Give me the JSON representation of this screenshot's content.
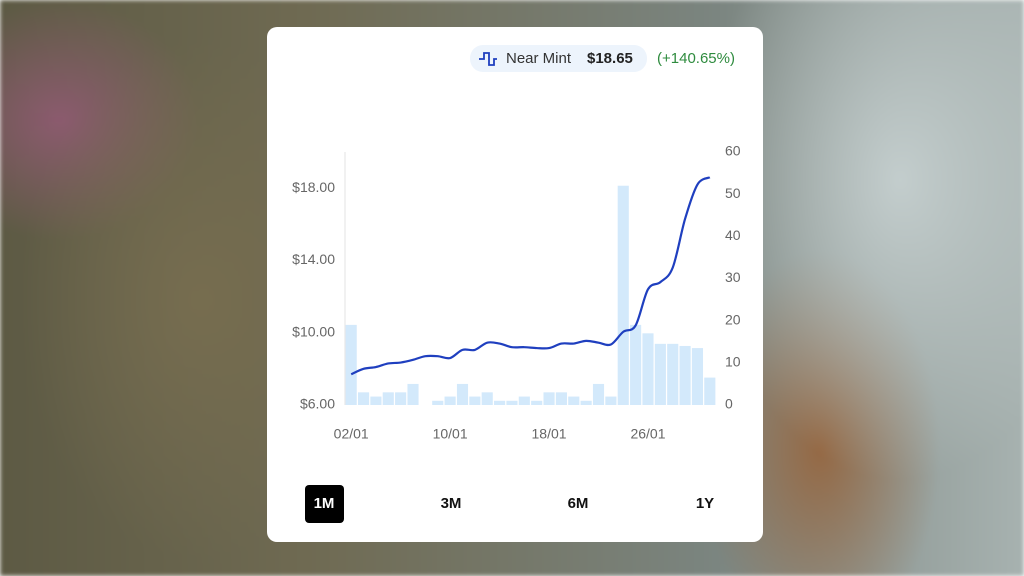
{
  "header": {
    "condition": "Near Mint",
    "price": "$18.65",
    "change": "(+140.65%)"
  },
  "ranges": [
    "1M",
    "3M",
    "6M",
    "1Y"
  ],
  "selected_range": 0,
  "chart_data": {
    "type": "combo",
    "categories": [
      "02/01",
      null,
      null,
      null,
      null,
      null,
      null,
      null,
      "10/01",
      null,
      null,
      null,
      null,
      null,
      null,
      null,
      "18/01",
      null,
      null,
      null,
      null,
      null,
      null,
      null,
      "26/01",
      null,
      null,
      null,
      null,
      null
    ],
    "series": [
      {
        "type": "bar",
        "axis": "y2",
        "color": "#d3e9fb",
        "values": [
          19,
          3,
          2,
          3,
          3,
          5,
          0,
          1,
          2,
          5,
          2,
          3,
          1,
          1,
          2,
          1,
          3,
          3,
          2,
          1,
          5,
          2,
          52,
          19,
          17,
          14.5,
          14.5,
          14,
          13.5,
          6.5
        ]
      },
      {
        "type": "line",
        "axis": "y",
        "color": "#1f3fbf",
        "values": [
          7.7,
          8.0,
          8.1,
          8.3,
          8.35,
          8.5,
          8.7,
          8.7,
          8.6,
          9.05,
          9.05,
          9.45,
          9.4,
          9.2,
          9.2,
          9.15,
          9.15,
          9.4,
          9.4,
          9.55,
          9.45,
          9.35,
          10.05,
          10.4,
          12.4,
          12.8,
          13.6,
          16.3,
          18.2,
          18.6
        ]
      }
    ],
    "ylim": [
      6,
      20
    ],
    "yticks": [
      {
        "value": 6,
        "label": "$6.00"
      },
      {
        "value": 10,
        "label": "$10.00"
      },
      {
        "value": 14,
        "label": "$14.00"
      },
      {
        "value": 18,
        "label": "$18.00"
      }
    ],
    "y2lim": [
      0,
      60
    ],
    "y2ticks": [
      0,
      10,
      20,
      30,
      40,
      50,
      60
    ]
  }
}
